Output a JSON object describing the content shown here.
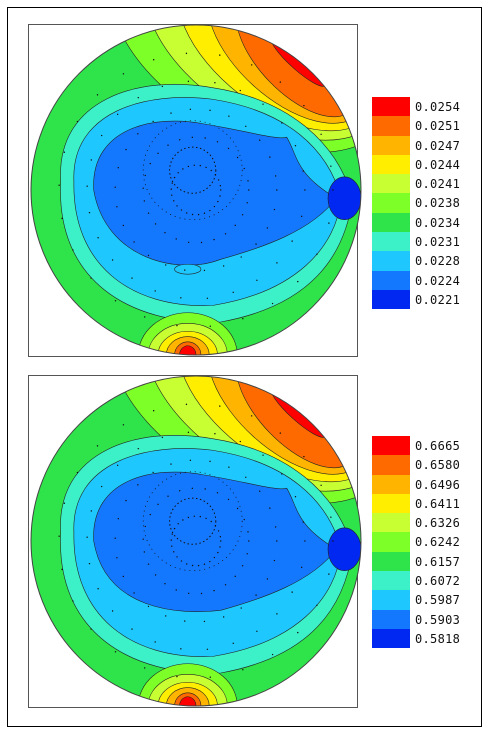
{
  "chart_data": [
    {
      "type": "contour",
      "title": "",
      "xlabel": "",
      "ylabel": "",
      "legend_position": "right",
      "levels": [
        "0.0254",
        "0.0251",
        "0.0247",
        "0.0244",
        "0.0241",
        "0.0238",
        "0.0234",
        "0.0231",
        "0.0228",
        "0.0224",
        "0.0221"
      ],
      "colors": [
        "#ff0000",
        "#ff6a00",
        "#ffb400",
        "#ffee00",
        "#c8ff32",
        "#7dff28",
        "#2ee44a",
        "#3cf0c8",
        "#1ec8ff",
        "#1478ff",
        "#0028f0"
      ]
    },
    {
      "type": "contour",
      "title": "",
      "xlabel": "",
      "ylabel": "",
      "legend_position": "right",
      "levels": [
        "0.6665",
        "0.6580",
        "0.6496",
        "0.6411",
        "0.6326",
        "0.6242",
        "0.6157",
        "0.6072",
        "0.5987",
        "0.5903",
        "0.5818"
      ],
      "colors": [
        "#ff0000",
        "#ff6a00",
        "#ffb400",
        "#ffee00",
        "#c8ff32",
        "#7dff28",
        "#2ee44a",
        "#3cf0c8",
        "#1ec8ff",
        "#1478ff",
        "#0028f0"
      ]
    }
  ]
}
